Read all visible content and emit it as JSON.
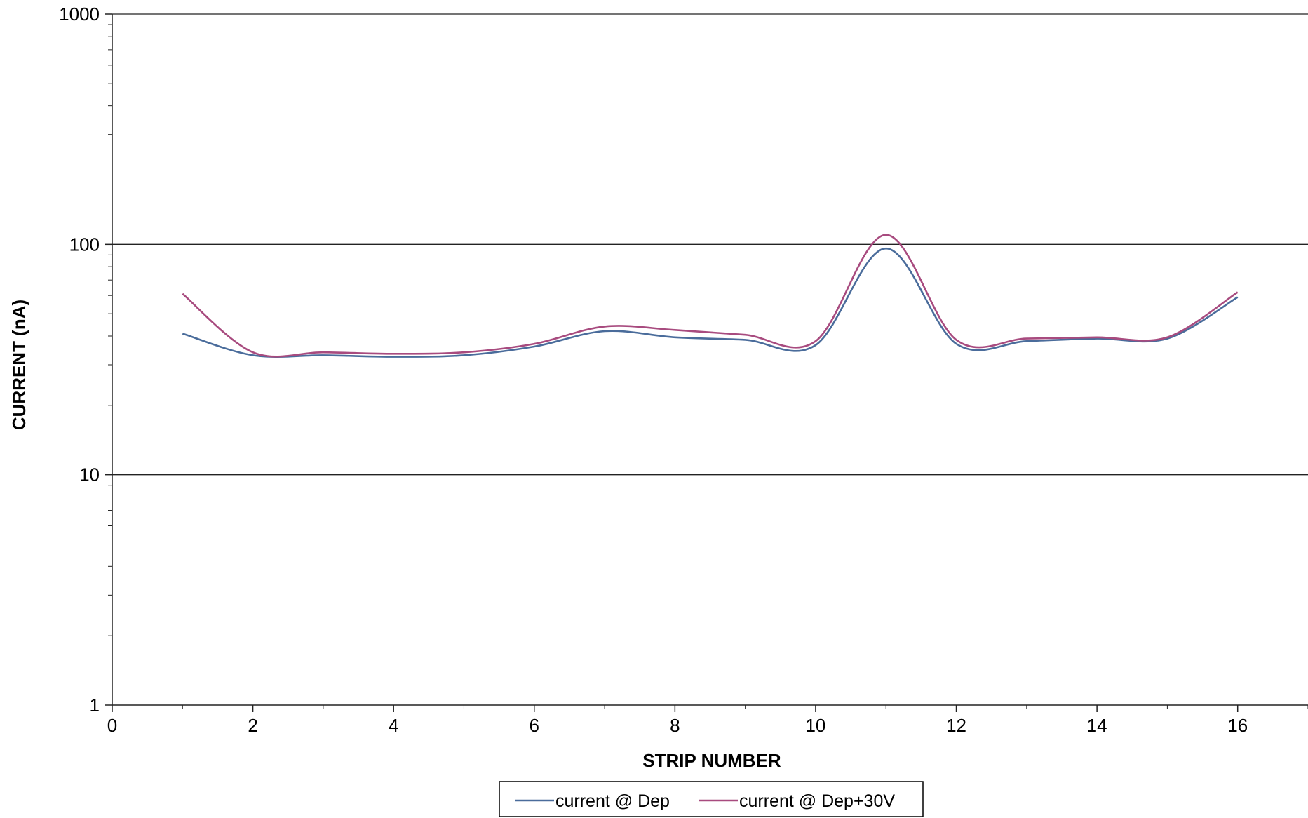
{
  "chart_data": {
    "type": "line",
    "title": "",
    "xlabel": "STRIP NUMBER",
    "ylabel": "CURRENT (nA)",
    "x_scale": "linear",
    "y_scale": "log",
    "xlim": [
      0,
      17
    ],
    "ylim": [
      1,
      1000
    ],
    "x_ticks": [
      0,
      2,
      4,
      6,
      8,
      10,
      12,
      14,
      16
    ],
    "y_ticks": [
      1,
      10,
      100,
      1000
    ],
    "grid": "horizontal major lines at 10, 100, 1000",
    "legend_position": "bottom-center",
    "x": [
      1,
      2,
      3,
      4,
      5,
      6,
      7,
      8,
      9,
      10,
      11,
      12,
      13,
      14,
      15,
      16
    ],
    "series": [
      {
        "name": "current @ Dep",
        "color": "#4a6c9b",
        "values": [
          41,
          33,
          33,
          32.5,
          33,
          36,
          42,
          39.5,
          38.5,
          36.5,
          96,
          37,
          38,
          39,
          39,
          59
        ]
      },
      {
        "name": "current @ Dep+30V",
        "color": "#a84b7f",
        "values": [
          61,
          34,
          34,
          33.5,
          34,
          37,
          44,
          42.5,
          40.5,
          38,
          110,
          38.5,
          39,
          39.5,
          39.5,
          62
        ]
      }
    ]
  }
}
